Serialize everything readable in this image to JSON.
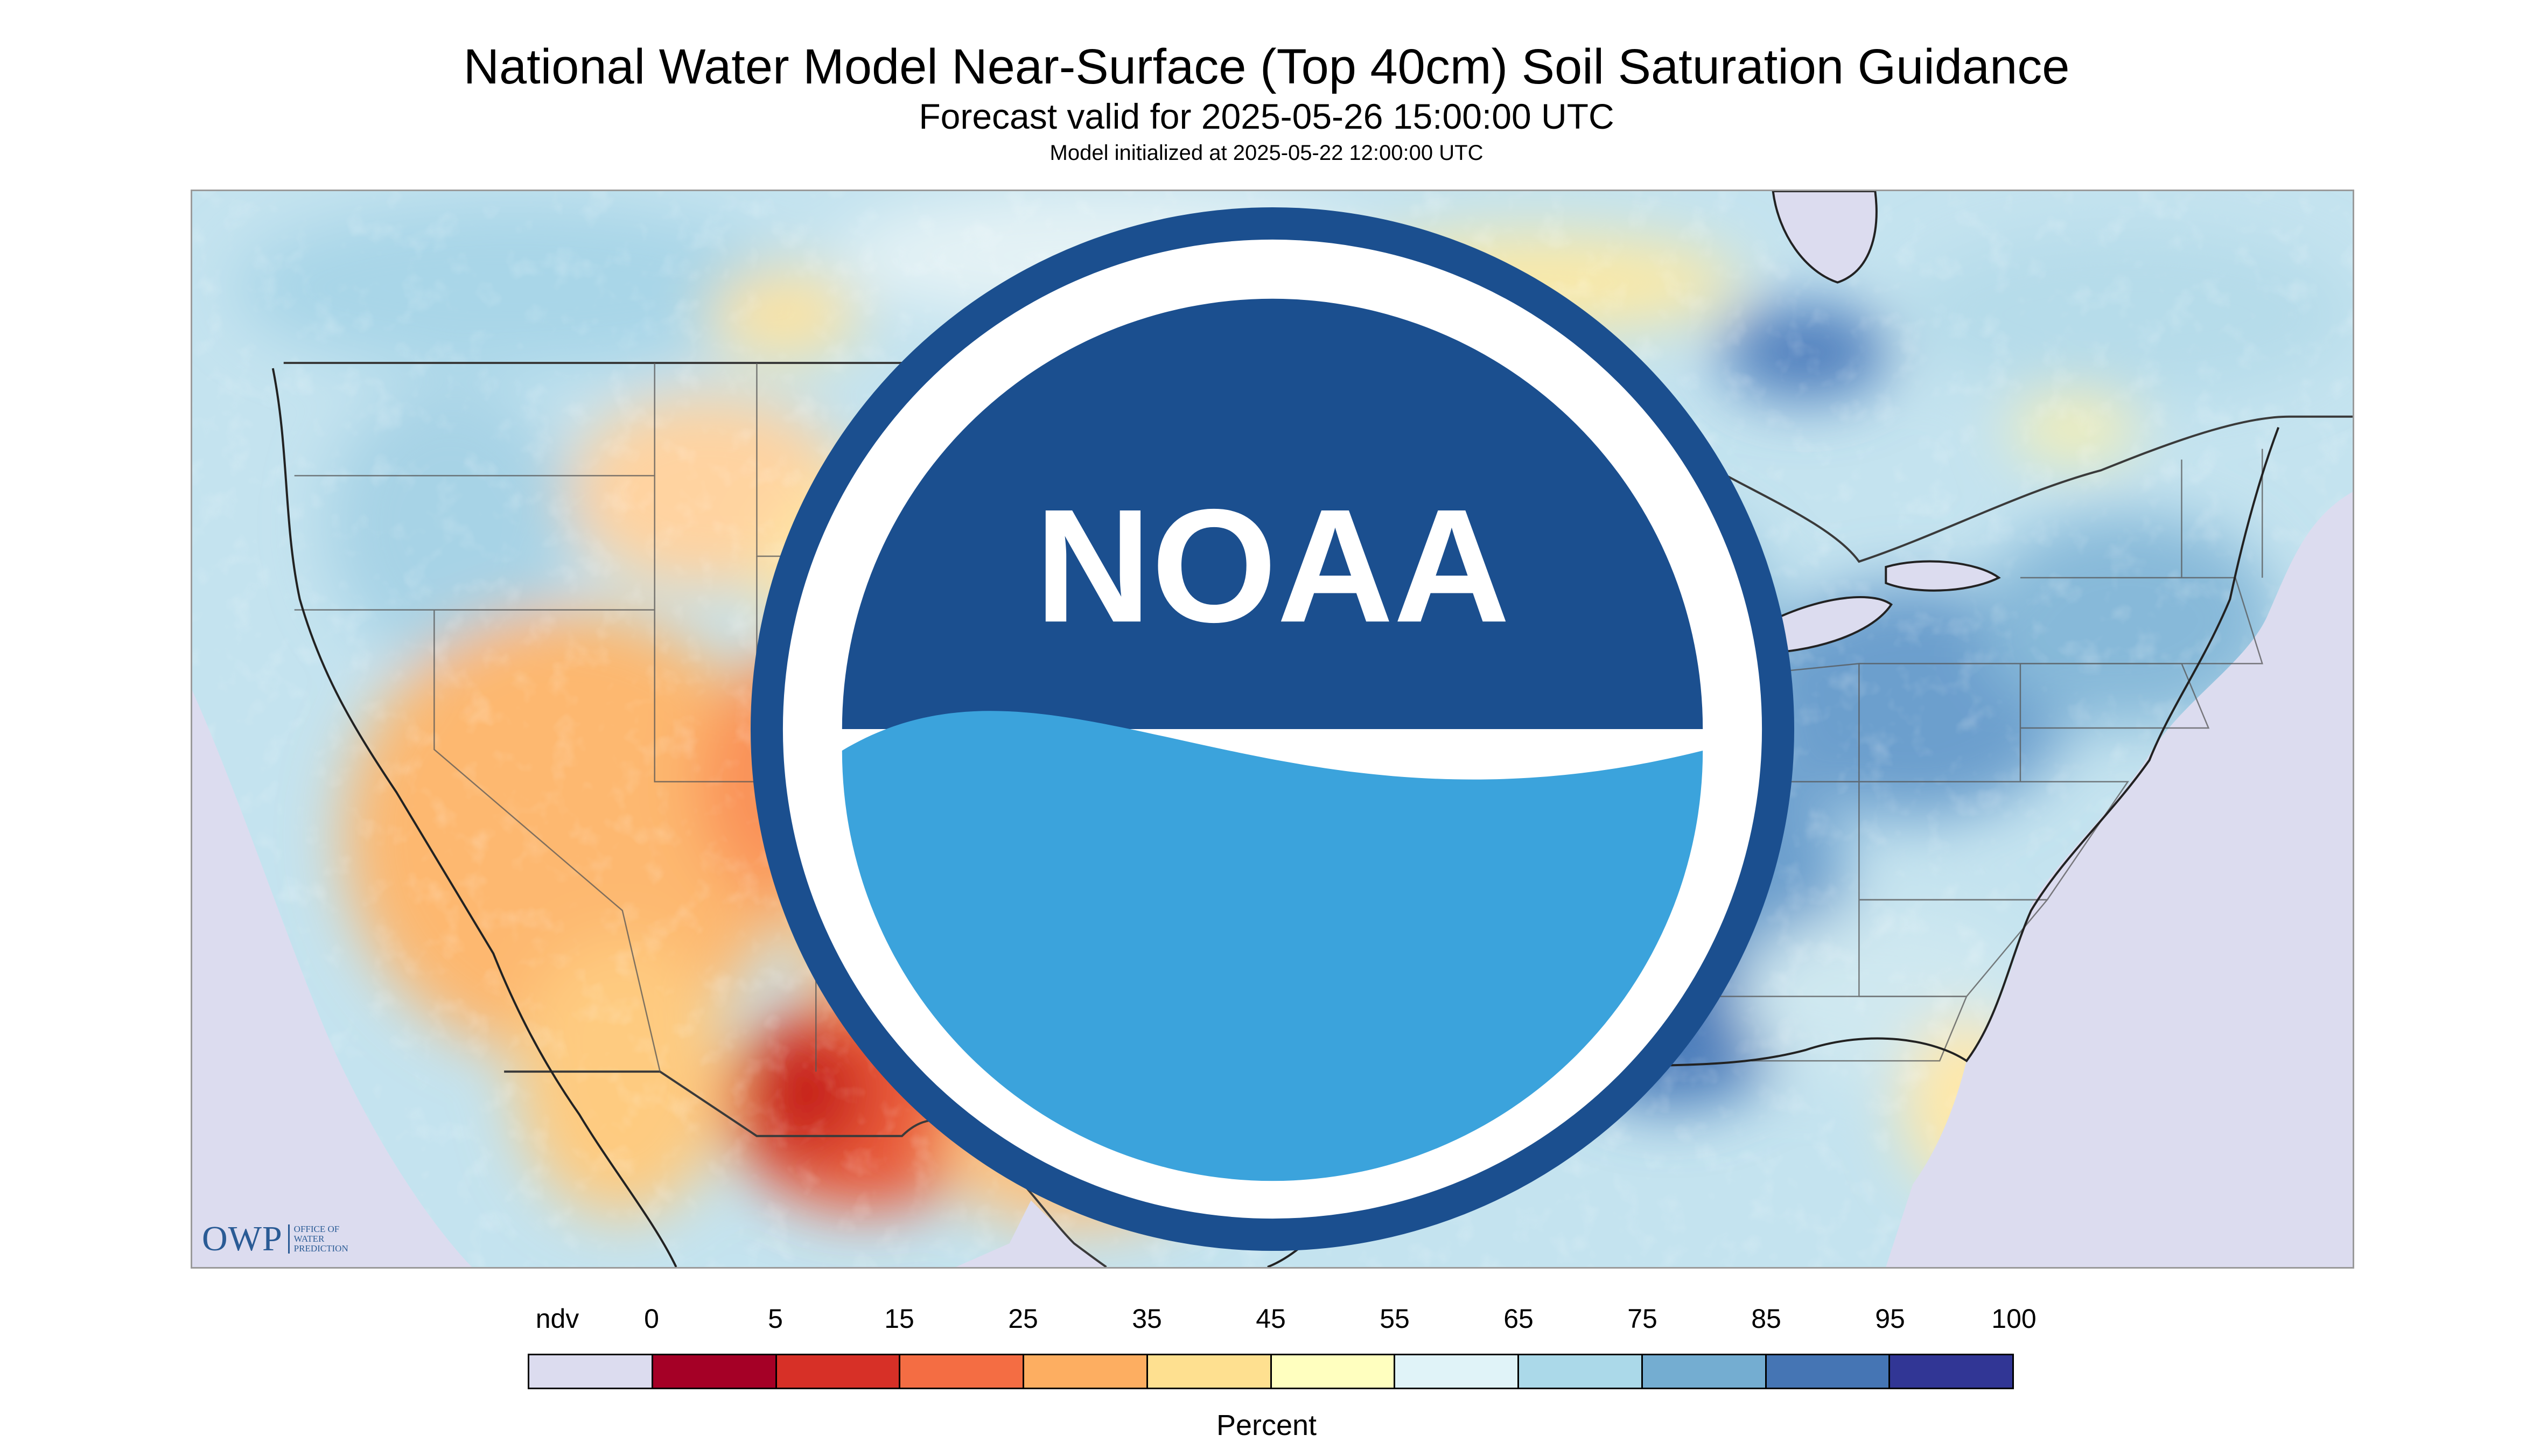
{
  "header": {
    "title": "National Water Model Near-Surface (Top 40cm) Soil Saturation Guidance",
    "subtitle": "Forecast valid for 2025-05-26 15:00:00 UTC",
    "init": "Model initialized at 2025-05-22 12:00:00 UTC"
  },
  "logos": {
    "owp_main": "OWP",
    "owp_line1": "OFFICE OF",
    "owp_line2": "WATER",
    "owp_line3": "PREDICTION",
    "noaa_text": "NOAA"
  },
  "legend": {
    "title": "Percent",
    "tick_labels": [
      "ndv",
      "0",
      "5",
      "15",
      "25",
      "35",
      "45",
      "55",
      "65",
      "75",
      "85",
      "95",
      "100"
    ],
    "colors": [
      "#dcdcef",
      "#a50026",
      "#d73027",
      "#f46d43",
      "#fdae61",
      "#fee090",
      "#ffffbf",
      "#e0f3f8",
      "#abd9e9",
      "#74add1",
      "#4575b4",
      "#313695"
    ]
  },
  "map_colors": {
    "ocean": "#dcdcef",
    "lakes": "#dcdcef",
    "borders": "#3a3a3a"
  }
}
